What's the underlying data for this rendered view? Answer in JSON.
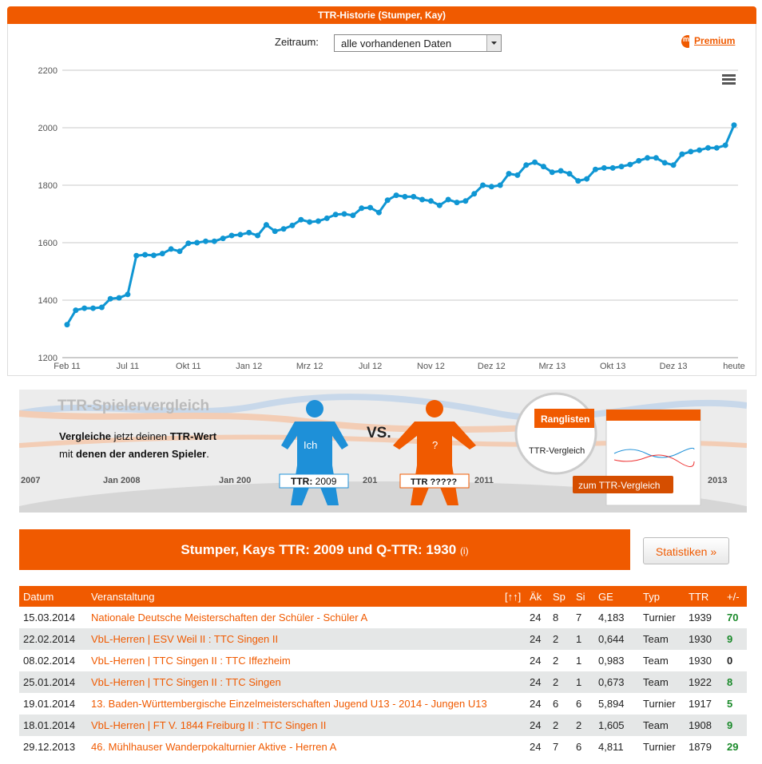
{
  "header": {
    "title": "TTR-Historie (Stumper, Kay)"
  },
  "filter": {
    "label": "Zeitraum:",
    "selected": "alle vorhandenen Daten"
  },
  "premium": {
    "prefix": "my",
    "label": "Premium"
  },
  "chart_data": {
    "type": "line",
    "color": "#0f96d3",
    "grid": true,
    "ylim": [
      1200,
      2200
    ],
    "yticks": [
      1200,
      1400,
      1600,
      1800,
      2000,
      2200
    ],
    "categories": [
      "Feb 11",
      null,
      null,
      null,
      null,
      null,
      null,
      "Jul 11",
      null,
      null,
      null,
      null,
      null,
      null,
      "Okt 11",
      null,
      null,
      null,
      null,
      null,
      null,
      "Jan 12",
      null,
      null,
      null,
      null,
      null,
      null,
      "Mrz 12",
      null,
      null,
      null,
      null,
      null,
      null,
      "Jul 12",
      null,
      null,
      null,
      null,
      null,
      null,
      "Nov 12",
      null,
      null,
      null,
      null,
      null,
      null,
      "Dez 12",
      null,
      null,
      null,
      null,
      null,
      null,
      "Mrz 13",
      null,
      null,
      null,
      null,
      null,
      null,
      "Okt 13",
      null,
      null,
      null,
      null,
      null,
      null,
      "Dez 13",
      null,
      null,
      null,
      null,
      null,
      null,
      "heute"
    ],
    "values": [
      1315,
      1365,
      1372,
      1372,
      1375,
      1405,
      1408,
      1420,
      1555,
      1558,
      1556,
      1562,
      1578,
      1570,
      1598,
      1600,
      1605,
      1605,
      1615,
      1625,
      1628,
      1635,
      1625,
      1662,
      1640,
      1648,
      1660,
      1680,
      1672,
      1675,
      1685,
      1698,
      1700,
      1695,
      1720,
      1722,
      1705,
      1748,
      1765,
      1760,
      1760,
      1750,
      1745,
      1730,
      1750,
      1740,
      1745,
      1770,
      1800,
      1795,
      1800,
      1840,
      1835,
      1870,
      1880,
      1865,
      1845,
      1850,
      1840,
      1815,
      1822,
      1855,
      1860,
      1860,
      1865,
      1872,
      1885,
      1895,
      1895,
      1878,
      1870,
      1908,
      1917,
      1922,
      1930,
      1930,
      1939,
      2009
    ]
  },
  "banner": {
    "title": "TTR-Spielervergleich",
    "line1_bold": "Vergleiche",
    "line1_rest": "jetzt deinen",
    "line1_ttr": "TTR-Wert",
    "line2_mit": "mit",
    "line2_bold": "denen der anderen Spieler",
    "line2_end": ".",
    "ich": "Ich",
    "vs": "VS.",
    "question": "?",
    "ttr_me_label": "TTR:",
    "ttr_me_value": "2009",
    "ttr_other": "TTR ?????",
    "ranglisten": "Ranglisten",
    "ttr_vergleich": "TTR-Vergleich",
    "button": "zum TTR-Vergleich",
    "bg_years": [
      "2007",
      "Jan 2008",
      "Jan 200",
      "201",
      "2011",
      "2013"
    ]
  },
  "summary": {
    "title": "Stumper, Kays TTR: 2009 und Q-TTR: 1930",
    "info": "(i)",
    "button": "Statistiken »"
  },
  "table": {
    "columns": [
      "Datum",
      "Veranstaltung",
      "[↑↑]",
      "Äk",
      "Sp",
      "Si",
      "GE",
      "Typ",
      "TTR",
      "+/-"
    ],
    "rows": [
      [
        "15.03.2014",
        "Nationale Deutsche Meisterschaften der Schüler - Schüler A",
        "",
        "24",
        "8",
        "7",
        "4,183",
        "Turnier",
        "1939",
        "70"
      ],
      [
        "22.02.2014",
        "VbL-Herren | ESV Weil II : TTC Singen II",
        "",
        "24",
        "2",
        "1",
        "0,644",
        "Team",
        "1930",
        "9"
      ],
      [
        "08.02.2014",
        "VbL-Herren | TTC Singen II : TTC Iffezheim",
        "",
        "24",
        "2",
        "1",
        "0,983",
        "Team",
        "1930",
        "0"
      ],
      [
        "25.01.2014",
        "VbL-Herren | TTC Singen II : TTC Singen",
        "",
        "24",
        "2",
        "1",
        "0,673",
        "Team",
        "1922",
        "8"
      ],
      [
        "19.01.2014",
        "13. Baden-Württembergische Einzelmeisterschaften Jugend U13 - 2014 - Jungen U13",
        "",
        "24",
        "6",
        "6",
        "5,894",
        "Turnier",
        "1917",
        "5"
      ],
      [
        "18.01.2014",
        "VbL-Herren | FT V. 1844 Freiburg II : TTC Singen II",
        "",
        "24",
        "2",
        "2",
        "1,605",
        "Team",
        "1908",
        "9"
      ],
      [
        "29.12.2013",
        "46. Mühlhauser Wanderpokalturnier Aktive - Herren A",
        "",
        "24",
        "7",
        "6",
        "4,811",
        "Turnier",
        "1879",
        "29"
      ]
    ]
  }
}
